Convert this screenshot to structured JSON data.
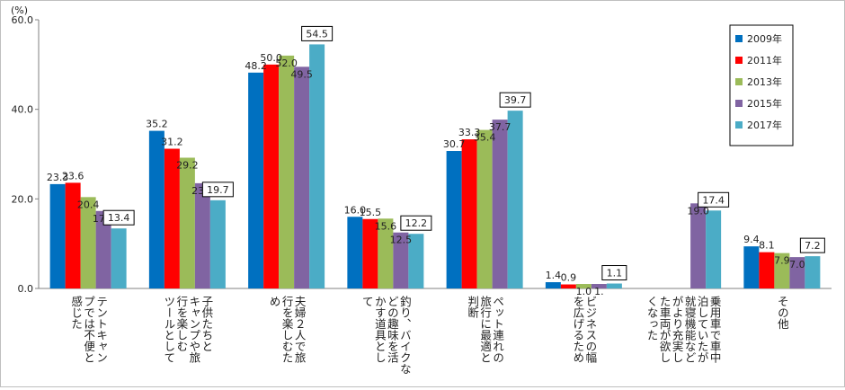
{
  "chart_data": {
    "type": "bar",
    "unit": "(%)",
    "categories": [
      "テントキャンプでは不便と感じた",
      "子供たちとキャンプや旅行を楽しむツールとして",
      "夫婦２人で旅行を楽しむため",
      "釣り、バイクなどの趣味を活かす道具として",
      "ペット連れの旅行に最適との判断",
      "ビジネスの幅を広げるため",
      "乗用車で車中泊していたが就寝機能などがより充実した車両が欲しくなった",
      "その他"
    ],
    "category_lines": [
      [
        "テントキャン",
        "プでは不便と",
        "感じた"
      ],
      [
        "子供たちと",
        "キャンプや旅",
        "行を楽しむ",
        "ツールとして"
      ],
      [
        "夫婦２人で旅",
        "行を楽しむた",
        "め"
      ],
      [
        "釣り、バイクな",
        "どの趣味を活",
        "かす道具とし",
        "て"
      ],
      [
        "ペット連れの",
        "旅行に最適と",
        "判断"
      ],
      [
        "ビジネスの幅",
        "を広げるため"
      ],
      [
        "乗用車で車中",
        "泊していたが",
        "就寝機能など",
        "がより充実し",
        "た車両が欲し",
        "くなった"
      ],
      [
        "その他"
      ]
    ],
    "series": [
      {
        "name": "2009年",
        "color": "#0070c0",
        "values": [
          23.3,
          35.2,
          48.2,
          16.0,
          30.7,
          1.4,
          null,
          9.4
        ],
        "labels": [
          "23.3",
          "35.2",
          "48.2",
          "16.0",
          "30.7",
          "1.4",
          "",
          "9.4"
        ]
      },
      {
        "name": "2011年",
        "color": "#ff0000",
        "values": [
          23.6,
          31.2,
          50.0,
          15.5,
          33.3,
          0.9,
          null,
          8.1
        ],
        "labels": [
          "23.6",
          "31.2",
          "50.0",
          "15.5",
          "33.3",
          "0.9",
          "",
          "8.1"
        ]
      },
      {
        "name": "2013年",
        "color": "#9bbb59",
        "values": [
          20.4,
          29.2,
          52.0,
          15.6,
          35.4,
          1.0,
          null,
          7.9
        ],
        "labels": [
          "20.4",
          "29.2",
          "52.0",
          "15.6",
          "35.4",
          "1.0",
          "",
          "7.9"
        ]
      },
      {
        "name": "2015年",
        "color": "#8064a2",
        "values": [
          17.3,
          23.5,
          49.5,
          12.5,
          37.7,
          1.0,
          19.0,
          7.0
        ],
        "labels": [
          "17.3",
          "23.5",
          "49.5",
          "12.5",
          "37.7",
          "1.",
          "19.0",
          "7.0"
        ]
      },
      {
        "name": "2017年",
        "color": "#4bacc6",
        "values": [
          13.4,
          19.7,
          54.5,
          12.2,
          39.7,
          1.1,
          17.4,
          7.2
        ],
        "labels": [
          "13.4",
          "19.7",
          "54.5",
          "12.2",
          "39.7",
          "1.1",
          "17.4",
          "7.2"
        ]
      }
    ],
    "yticks": [
      "0.0",
      "20.0",
      "40.0",
      "60.0"
    ],
    "ylim": [
      0,
      60
    ],
    "grid": false,
    "legend_position": "top-right"
  }
}
